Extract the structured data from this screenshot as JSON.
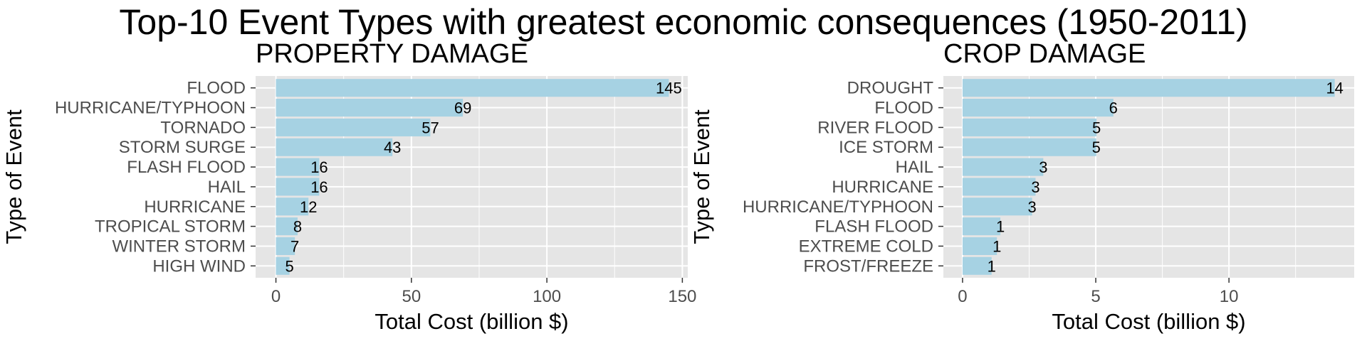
{
  "title": "Top-10 Event Types with greatest economic consequences (1950-2011)",
  "colors": {
    "bar": "#a6d2e3",
    "panel": "#e5e5e5",
    "grid": "#ffffff"
  },
  "chart_data": [
    {
      "type": "bar",
      "orientation": "horizontal",
      "title": "PROPERTY DAMAGE",
      "xlabel": "Total Cost (billion $)",
      "ylabel": "Type of Event",
      "categories": [
        "FLOOD",
        "HURRICANE/TYPHOON",
        "TORNADO",
        "STORM SURGE",
        "FLASH FLOOD",
        "HAIL",
        "HURRICANE",
        "TROPICAL STORM",
        "WINTER STORM",
        "HIGH WIND"
      ],
      "values": [
        145,
        69,
        57,
        43,
        16,
        16,
        12,
        8,
        7,
        5
      ],
      "data_labels": [
        "145",
        "69",
        "57",
        "43",
        "16",
        "16",
        "12",
        "8",
        "7",
        "5"
      ],
      "xlim": [
        -7.5,
        152
      ],
      "xticks": [
        0,
        50,
        100,
        150
      ],
      "grid": true
    },
    {
      "type": "bar",
      "orientation": "horizontal",
      "title": "CROP DAMAGE",
      "xlabel": "Total Cost (billion $)",
      "ylabel": "Type of Event",
      "categories": [
        "DROUGHT",
        "FLOOD",
        "RIVER FLOOD",
        "ICE STORM",
        "HAIL",
        "HURRICANE",
        "HURRICANE/TYPHOON",
        "FLASH FLOOD",
        "EXTREME COLD",
        "FROST/FREEZE"
      ],
      "values": [
        13.97,
        5.66,
        5.03,
        5.02,
        3.03,
        2.74,
        2.61,
        1.42,
        1.29,
        1.09
      ],
      "data_labels": [
        "14",
        "6",
        "5",
        "5",
        "3",
        "3",
        "3",
        "1",
        "1",
        "1"
      ],
      "xlim": [
        -0.72,
        14.7
      ],
      "xticks": [
        0,
        5,
        10
      ],
      "grid": true
    }
  ]
}
